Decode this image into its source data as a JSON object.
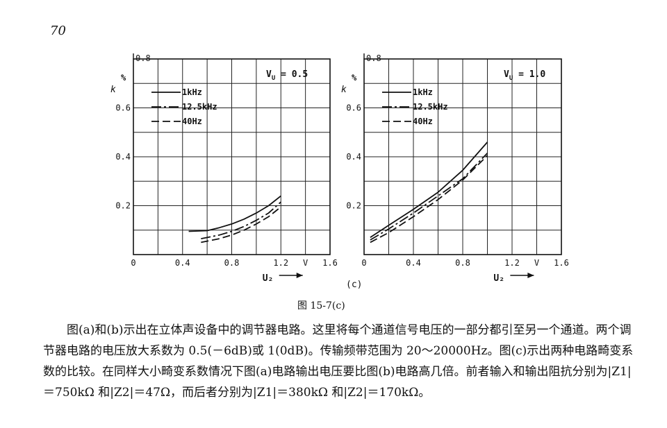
{
  "page": {
    "number": "70",
    "figure_caption": "图 15-7(c)",
    "paragraph": "图(a)和(b)示出在立体声设备中的调节器电路。这里将每个通道信号电压的一部分都引至另一个通道。两个调节器电路的电压放大系数为 0.5(－6dB)或 1(0dB)。传输频带范围为 20～20000Hz。图(c)示出两种电路畸变系数的比较。在同样大小畸变系数情况下图(a)电路输出电压要比图(b)电路高几倍。前者输入和输出阻抗分别为|Z1|＝750kΩ 和|Z2|＝47Ω，而后者分别为|Z1|＝380kΩ 和|Z2|＝170kΩ。"
  },
  "figure": {
    "sub_label": "(c)",
    "y_axis_symbol": "k",
    "y_axis_unit": "%",
    "x_axis_symbol": "U₂",
    "x_unit": "V",
    "y_tick_labels": [
      "0.8",
      "0.6",
      "0.4",
      "0.2"
    ],
    "x_tick_labels": [
      "0",
      "0.4",
      "0.8",
      "1.2",
      "1.6"
    ]
  },
  "chart_data": [
    {
      "type": "line",
      "annotation": "V_U = 0.5",
      "xlim": [
        0,
        1.6
      ],
      "ylim": [
        0,
        0.8
      ],
      "series": [
        {
          "name": "1kHz",
          "style": "solid",
          "x": [
            0.45,
            0.6,
            0.7,
            0.8,
            0.9,
            1.0,
            1.1,
            1.2
          ],
          "y": [
            0.095,
            0.098,
            0.11,
            0.125,
            0.145,
            0.17,
            0.2,
            0.24
          ]
        },
        {
          "name": "12.5kHz",
          "style": "dashdot",
          "x": [
            0.55,
            0.7,
            0.8,
            0.9,
            1.0,
            1.1,
            1.2
          ],
          "y": [
            0.065,
            0.08,
            0.095,
            0.115,
            0.14,
            0.17,
            0.215
          ]
        },
        {
          "name": "40Hz",
          "style": "dashed",
          "x": [
            0.55,
            0.7,
            0.8,
            0.9,
            1.0,
            1.1,
            1.2
          ],
          "y": [
            0.05,
            0.065,
            0.08,
            0.1,
            0.125,
            0.155,
            0.195
          ]
        }
      ]
    },
    {
      "type": "line",
      "annotation": "V_U = 1.0",
      "xlim": [
        0,
        1.6
      ],
      "ylim": [
        0,
        0.8
      ],
      "series": [
        {
          "name": "1kHz",
          "style": "solid",
          "x": [
            0.05,
            0.2,
            0.4,
            0.6,
            0.8,
            1.0
          ],
          "y": [
            0.07,
            0.12,
            0.185,
            0.255,
            0.345,
            0.46
          ]
        },
        {
          "name": "12.5kHz",
          "style": "dashdot",
          "x": [
            0.05,
            0.2,
            0.4,
            0.6,
            0.8,
            1.0
          ],
          "y": [
            0.06,
            0.105,
            0.17,
            0.24,
            0.31,
            0.415
          ]
        },
        {
          "name": "40Hz",
          "style": "dashed",
          "x": [
            0.05,
            0.2,
            0.4,
            0.6,
            0.8,
            1.0
          ],
          "y": [
            0.05,
            0.09,
            0.155,
            0.225,
            0.305,
            0.405
          ]
        }
      ]
    }
  ]
}
